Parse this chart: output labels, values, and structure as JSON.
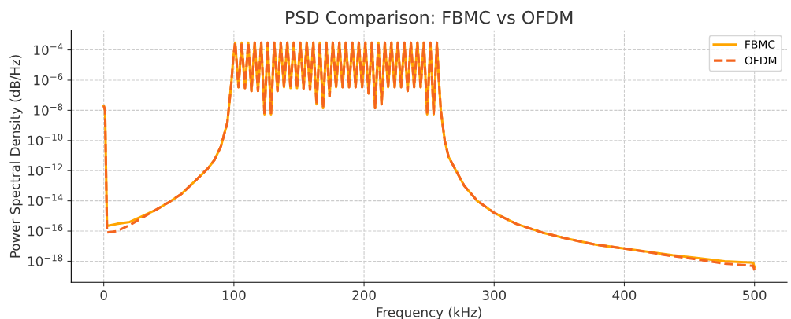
{
  "chart_data": {
    "type": "line",
    "title": "PSD Comparison: FBMC vs OFDM",
    "xlabel": "Frequency (kHz)",
    "ylabel": "Power Spectral Density (dB/Hz)",
    "log": "y",
    "grid": true,
    "legend": "top right",
    "xlim": [
      -25,
      525
    ],
    "xticks": [
      0,
      100,
      200,
      300,
      400,
      500
    ],
    "ylim": [
      4e-20,
      0.002
    ],
    "yticks": [
      {
        "value": 1e-18,
        "label": "10$^{−18}$"
      },
      {
        "value": 1e-16,
        "label": "10$^{−16}$"
      },
      {
        "value": 1e-14,
        "label": "10$^{−14}$"
      },
      {
        "value": 1e-12,
        "label": "10$^{−12}$"
      },
      {
        "value": 1e-10,
        "label": "10$^{−10}$"
      },
      {
        "value": 1e-08,
        "label": "10$^{−8}$"
      },
      {
        "value": 1e-06,
        "label": "10$^{−6}$"
      },
      {
        "value": 0.0001,
        "label": "10$^{−4}$"
      }
    ],
    "series": [
      {
        "name": "FBMC",
        "color": "#ffa500",
        "line_style": "solid",
        "x": [
          0,
          1,
          2.5,
          10,
          20,
          30,
          40,
          50,
          60,
          70,
          80,
          85,
          90,
          95,
          98,
          99.5,
          101,
          103.5,
          106,
          108.5,
          111,
          113.5,
          116,
          118.5,
          121,
          123.5,
          126,
          128.5,
          131,
          133.5,
          136,
          138.5,
          141,
          143.5,
          146,
          148.5,
          151,
          153.5,
          156,
          158.5,
          161,
          163.5,
          166,
          168.5,
          171,
          173.5,
          176,
          178.5,
          181,
          183.5,
          186,
          188.5,
          191,
          193.5,
          196,
          198.5,
          201,
          203.5,
          206,
          208.5,
          211,
          213.5,
          216,
          218.5,
          221,
          223.5,
          226,
          228.5,
          231,
          233.5,
          236,
          238.5,
          241,
          243.5,
          246,
          248.5,
          251,
          253.5,
          256,
          257.5,
          259,
          262,
          265,
          277,
          287,
          300,
          317,
          337,
          357,
          377,
          400,
          437,
          457,
          477,
          499,
          500
        ],
        "values": [
          2e-08,
          1e-08,
          2.2e-16,
          3e-16,
          4e-16,
          1e-15,
          2.5e-15,
          8e-15,
          3e-14,
          2e-13,
          1.4e-12,
          5e-12,
          4e-11,
          1.6e-09,
          6e-07,
          3e-05,
          0.0003,
          3.4e-07,
          0.0003,
          3e-07,
          0.0003,
          1.9e-07,
          0.0003,
          1.9e-07,
          0.0003,
          5.5e-09,
          0.0003,
          5.5e-09,
          0.0003,
          1.9e-07,
          0.0003,
          3.4e-07,
          0.0003,
          3e-07,
          0.0003,
          3e-07,
          0.0003,
          2.8e-07,
          0.0003,
          2.3e-07,
          0.0003,
          2.5e-08,
          0.0003,
          1.4e-08,
          0.0003,
          8.5e-08,
          0.0003,
          3.4e-07,
          0.0003,
          3.4e-07,
          0.0003,
          3.4e-07,
          0.0003,
          3.4e-07,
          0.0003,
          3.4e-07,
          0.0003,
          1.3e-07,
          0.0003,
          1.4e-08,
          0.0003,
          2.5e-08,
          0.0003,
          3.4e-07,
          0.0003,
          3.4e-07,
          0.0003,
          3.4e-07,
          0.0003,
          1.9e-07,
          0.0003,
          3.4e-07,
          0.0003,
          3.4e-07,
          0.0003,
          5.5e-09,
          0.0003,
          5.5e-09,
          0.0003,
          1e-06,
          1e-08,
          1e-10,
          8e-12,
          1e-13,
          1e-14,
          1.6e-15,
          3e-16,
          8e-17,
          3e-17,
          1.3e-17,
          7e-18,
          2.5e-18,
          1.6e-18,
          1e-18,
          8e-19,
          4e-19
        ]
      },
      {
        "name": "OFDM",
        "color": "#f4651f",
        "line_style": "dashed",
        "x": [
          0,
          1,
          2.5,
          10,
          20,
          30,
          40,
          50,
          60,
          70,
          80,
          85,
          90,
          95,
          98,
          99.5,
          101,
          103.5,
          106,
          108.5,
          111,
          113.5,
          116,
          118.5,
          121,
          123.5,
          126,
          128.5,
          131,
          133.5,
          136,
          138.5,
          141,
          143.5,
          146,
          148.5,
          151,
          153.5,
          156,
          158.5,
          161,
          163.5,
          166,
          168.5,
          171,
          173.5,
          176,
          178.5,
          181,
          183.5,
          186,
          188.5,
          191,
          193.5,
          196,
          198.5,
          201,
          203.5,
          206,
          208.5,
          211,
          213.5,
          216,
          218.5,
          221,
          223.5,
          226,
          228.5,
          231,
          233.5,
          236,
          238.5,
          241,
          243.5,
          246,
          248.5,
          251,
          253.5,
          256,
          257.5,
          259,
          262,
          265,
          277,
          287,
          300,
          317,
          337,
          357,
          377,
          400,
          437,
          457,
          477,
          499,
          500
        ],
        "values": [
          2e-08,
          1e-08,
          8e-17,
          1e-16,
          2.5e-16,
          8e-16,
          2.5e-15,
          8e-15,
          3e-14,
          2e-13,
          1.4e-12,
          5e-12,
          4e-11,
          1.6e-09,
          6e-07,
          3e-05,
          0.0003,
          3.4e-07,
          0.0003,
          3e-07,
          0.0003,
          1.9e-07,
          0.0003,
          1.9e-07,
          0.0003,
          5.5e-09,
          0.0003,
          5.5e-09,
          0.0003,
          1.9e-07,
          0.0003,
          3.4e-07,
          0.0003,
          3e-07,
          0.0003,
          3e-07,
          0.0003,
          2.8e-07,
          0.0003,
          2.3e-07,
          0.0003,
          2.5e-08,
          0.0003,
          1.4e-08,
          0.0003,
          8.5e-08,
          0.0003,
          3.4e-07,
          0.0003,
          3.4e-07,
          0.0003,
          3.4e-07,
          0.0003,
          3.4e-07,
          0.0003,
          3.4e-07,
          0.0003,
          1.3e-07,
          0.0003,
          1.4e-08,
          0.0003,
          2.5e-08,
          0.0003,
          3.4e-07,
          0.0003,
          3.4e-07,
          0.0003,
          3.4e-07,
          0.0003,
          1.9e-07,
          0.0003,
          3.4e-07,
          0.0003,
          3.4e-07,
          0.0003,
          5.5e-09,
          0.0003,
          5.5e-09,
          0.0003,
          1e-06,
          1e-08,
          1e-10,
          8e-12,
          1e-13,
          1e-14,
          1.6e-15,
          3e-16,
          8e-17,
          3e-17,
          1.3e-17,
          7e-18,
          2.2e-18,
          1.3e-18,
          7e-19,
          5e-19,
          2.5e-19
        ]
      }
    ]
  }
}
